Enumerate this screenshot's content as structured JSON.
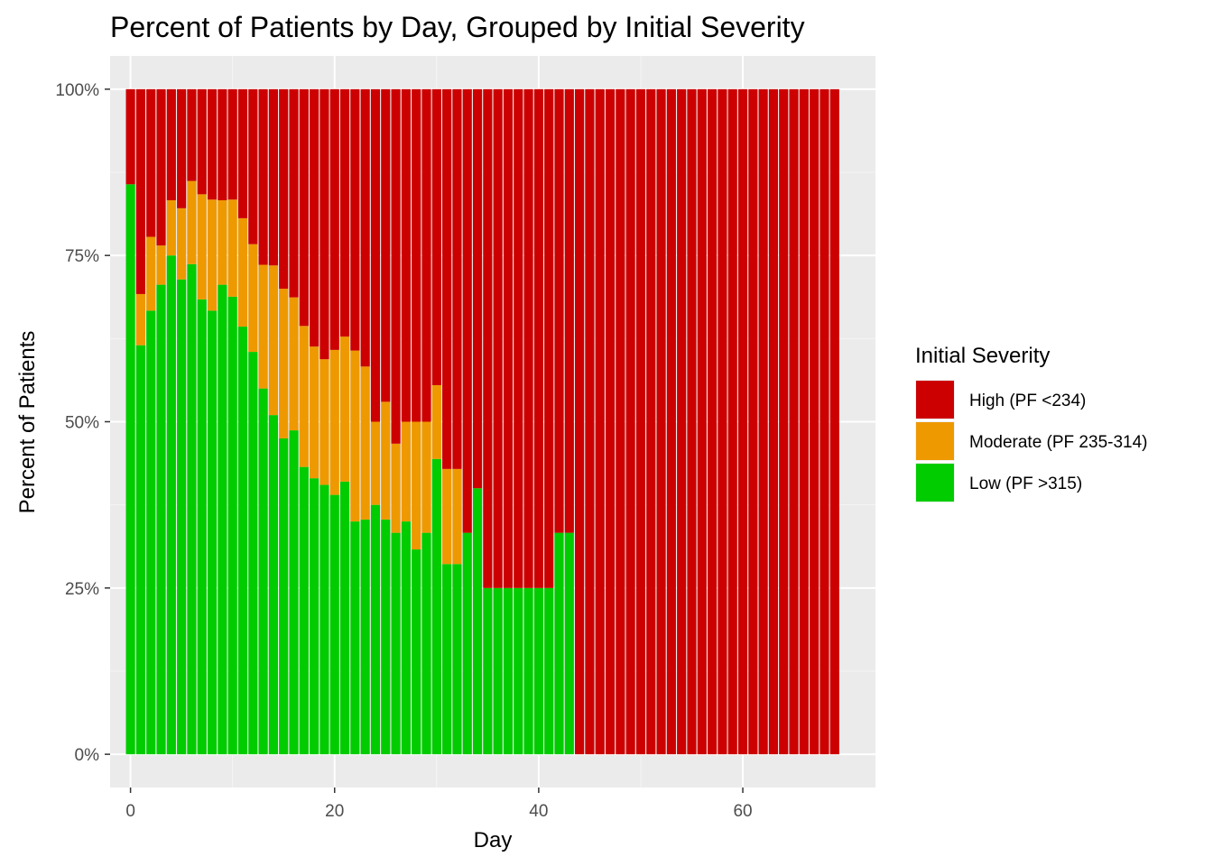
{
  "chart_data": {
    "type": "bar",
    "stacked": true,
    "position": "fill",
    "title": "Percent of Patients by Day, Grouped by Initial Severity",
    "xlabel": "Day",
    "ylabel": "Percent of Patients",
    "xlim": [
      -2,
      73
    ],
    "ylim": [
      -0.05,
      1.05
    ],
    "x_ticks": [
      0,
      20,
      40,
      60
    ],
    "x_tick_labels": [
      "0",
      "20",
      "40",
      "60"
    ],
    "y_ticks": [
      0,
      0.25,
      0.5,
      0.75,
      1.0
    ],
    "y_tick_labels": [
      "0%",
      "25%",
      "50%",
      "75%",
      "100%"
    ],
    "grid": true,
    "legend": {
      "title": "Initial Severity",
      "placement": "right",
      "entries": [
        {
          "label": "High (PF <234)",
          "color": "#CC0000"
        },
        {
          "label": "Moderate (PF 235-314)",
          "color": "#EE9900"
        },
        {
          "label": "Low (PF >315)",
          "color": "#00CC00"
        }
      ]
    },
    "colors": {
      "panel_background": "#EBEBEB",
      "grid_major": "#FFFFFF",
      "grid_minor": "#F5F5F5",
      "tick_text": "#4D4D4D"
    },
    "x": [
      0,
      1,
      2,
      3,
      4,
      5,
      6,
      7,
      8,
      9,
      10,
      11,
      12,
      13,
      14,
      15,
      16,
      17,
      18,
      19,
      20,
      21,
      22,
      23,
      24,
      25,
      26,
      27,
      28,
      29,
      30,
      31,
      32,
      33,
      34,
      35,
      36,
      37,
      38,
      39,
      40,
      41,
      42,
      43,
      44,
      45,
      46,
      47,
      48,
      49,
      50,
      51,
      52,
      53,
      54,
      55,
      56,
      57,
      58,
      59,
      60,
      61,
      62,
      63,
      64,
      65,
      66,
      67,
      68,
      69
    ],
    "series": [
      {
        "name": "Low (PF >315)",
        "color": "#00CC00",
        "values": [
          0.857,
          0.615,
          0.667,
          0.706,
          0.75,
          0.714,
          0.737,
          0.684,
          0.667,
          0.706,
          0.688,
          0.643,
          0.605,
          0.55,
          0.51,
          0.475,
          0.487,
          0.432,
          0.415,
          0.405,
          0.39,
          0.41,
          0.35,
          0.353,
          0.375,
          0.353,
          0.333,
          0.35,
          0.308,
          0.333,
          0.444,
          0.286,
          0.286,
          0.333,
          0.4,
          0.25,
          0.25,
          0.25,
          0.25,
          0.25,
          0.25,
          0.25,
          0.333,
          0.333,
          0,
          0,
          0,
          0,
          0,
          0,
          0,
          0,
          0,
          0,
          0,
          0,
          0,
          0,
          0,
          0,
          0,
          0,
          0,
          0,
          0,
          0,
          0,
          0,
          0,
          0
        ]
      },
      {
        "name": "Moderate (PF 235-314)",
        "color": "#EE9900",
        "values": [
          0,
          0.077,
          0.111,
          0.059,
          0.083,
          0.107,
          0.125,
          0.158,
          0.167,
          0.127,
          0.146,
          0.163,
          0.162,
          0.186,
          0.225,
          0.225,
          0.2,
          0.212,
          0.198,
          0.189,
          0.218,
          0.218,
          0.257,
          0.23,
          0.125,
          0.177,
          0.134,
          0.15,
          0.192,
          0.167,
          0.111,
          0.143,
          0.143,
          0,
          0,
          0,
          0,
          0,
          0,
          0,
          0,
          0,
          0,
          0,
          0,
          0,
          0,
          0,
          0,
          0,
          0,
          0,
          0,
          0,
          0,
          0,
          0,
          0,
          0,
          0,
          0,
          0,
          0,
          0,
          0,
          0,
          0,
          0,
          0,
          0
        ]
      },
      {
        "name": "High (PF <234)",
        "color": "#CC0000",
        "values": [
          0.143,
          0.308,
          0.222,
          0.235,
          0.167,
          0.179,
          0.138,
          0.158,
          0.166,
          0.167,
          0.166,
          0.194,
          0.233,
          0.264,
          0.265,
          0.3,
          0.313,
          0.356,
          0.387,
          0.406,
          0.392,
          0.372,
          0.393,
          0.417,
          0.5,
          0.47,
          0.533,
          0.5,
          0.5,
          0.5,
          0.445,
          0.571,
          0.571,
          0.667,
          0.6,
          0.75,
          0.75,
          0.75,
          0.75,
          0.75,
          0.75,
          0.75,
          0.667,
          0.667,
          1,
          1,
          1,
          1,
          1,
          1,
          1,
          1,
          1,
          1,
          1,
          1,
          1,
          1,
          1,
          1,
          1,
          1,
          1,
          1,
          1,
          1,
          1,
          1,
          1,
          1
        ]
      }
    ]
  }
}
